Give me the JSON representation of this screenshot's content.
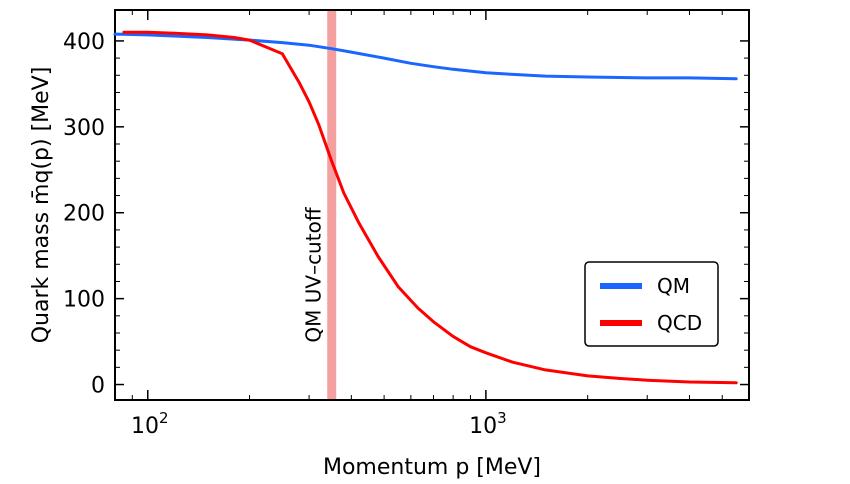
{
  "chart_data": {
    "type": "line",
    "xlabel": "Momentum p [MeV]",
    "ylabel": "Quark mass m̄q(p) [MeV]",
    "xscale": "log",
    "xlim": [
      80,
      6000
    ],
    "ylim": [
      -18,
      436
    ],
    "x_ticks": [
      {
        "value": 100,
        "base": "10",
        "exp": "2"
      },
      {
        "value": 1000,
        "base": "10",
        "exp": "3"
      }
    ],
    "y_ticks": [
      0,
      100,
      200,
      300,
      400
    ],
    "legend": {
      "position": "lower-right"
    },
    "annotation": {
      "text": "QM UV–cutoff",
      "x": 350,
      "color": "#f4a0a0"
    },
    "series": [
      {
        "name": "QM",
        "color": "#1a66ff",
        "x": [
          80,
          100,
          150,
          200,
          250,
          300,
          350,
          400,
          500,
          600,
          700,
          800,
          1000,
          1200,
          1500,
          2000,
          3000,
          4000,
          5500
        ],
        "y": [
          408,
          407,
          404,
          401,
          398,
          395,
          391,
          387,
          380,
          374,
          370,
          367,
          363,
          361,
          359,
          358,
          357,
          357,
          356
        ]
      },
      {
        "name": "QCD",
        "color": "#ff0000",
        "x": [
          85,
          100,
          120,
          150,
          180,
          200,
          250,
          280,
          300,
          320,
          350,
          380,
          420,
          480,
          550,
          630,
          700,
          800,
          900,
          1000,
          1200,
          1500,
          2000,
          2500,
          3000,
          4000,
          5500
        ],
        "y": [
          410,
          410,
          409,
          407,
          404,
          401,
          385,
          352,
          329,
          303,
          260,
          223,
          189,
          149,
          114,
          89,
          73,
          56,
          44,
          37,
          26,
          17,
          10,
          7,
          5,
          3,
          2
        ]
      }
    ]
  }
}
